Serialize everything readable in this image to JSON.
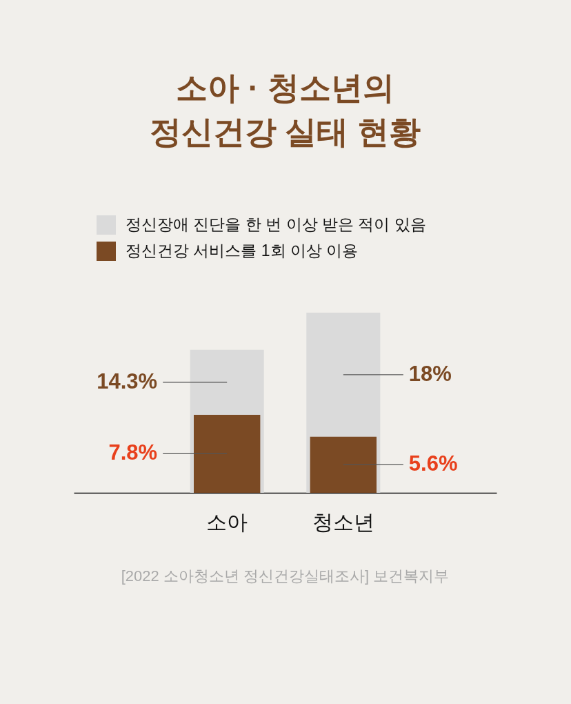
{
  "chart_data": {
    "type": "bar",
    "title": "소아 · 청소년의\n정신건강 실태 현황",
    "categories": [
      "소아",
      "청소년"
    ],
    "series": [
      {
        "name": "정신장애 진단을 한 번 이상 받은 적이 있음",
        "color": "#dadada",
        "values": [
          14.3,
          18
        ],
        "value_labels": [
          "14.3%",
          "18%"
        ]
      },
      {
        "name": "정신건강 서비스를 1회 이상 이용",
        "color": "#7b4a24",
        "values": [
          7.8,
          5.6
        ],
        "value_labels": [
          "7.8%",
          "5.6%"
        ]
      }
    ],
    "legend": "top",
    "annotations": [
      "[2022 소아청소년 정신건강실태조사] 보건복지부"
    ]
  }
}
